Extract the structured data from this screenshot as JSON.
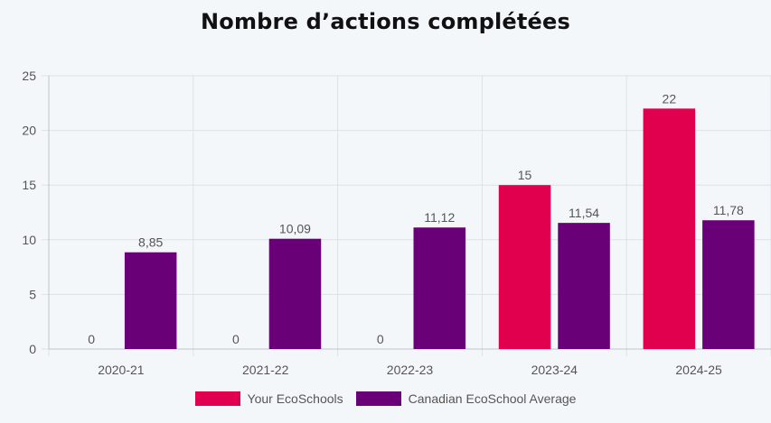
{
  "chart_data": {
    "type": "bar",
    "title": "Nombre d’actions complétées",
    "categories": [
      "2020-21",
      "2021-22",
      "2022-23",
      "2023-24",
      "2024-25"
    ],
    "series": [
      {
        "name": "Your EcoSchools",
        "color": "#e0004d",
        "values": [
          0,
          0,
          0,
          15,
          22
        ],
        "labels": [
          "0",
          "0",
          "0",
          "15",
          "22"
        ]
      },
      {
        "name": "Canadian EcoSchool Average",
        "color": "#6a0078",
        "values": [
          8.85,
          10.09,
          11.12,
          11.54,
          11.78
        ],
        "labels": [
          "8,85",
          "10,09",
          "11,12",
          "11,54",
          "11,78"
        ]
      }
    ],
    "yticks": [
      "0",
      "5",
      "10",
      "15",
      "20",
      "25"
    ],
    "ylim": [
      0,
      25
    ],
    "grid": true,
    "legend_position": "bottom"
  }
}
